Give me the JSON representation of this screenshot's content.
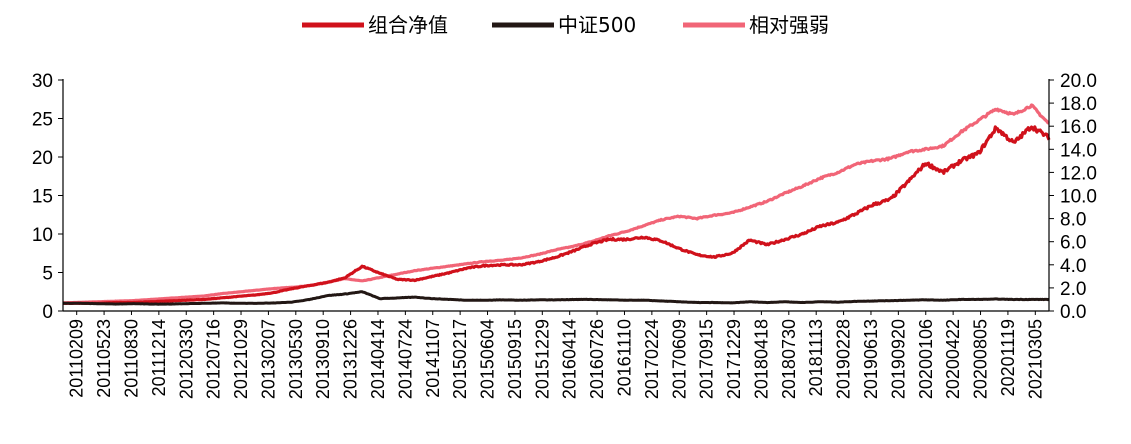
{
  "chart_data": {
    "type": "line",
    "legend_position": "top-center",
    "grid": false,
    "series": [
      {
        "name": "组合净值",
        "color": "#d0111b",
        "axis": "left",
        "values": [
          1.0,
          1.0,
          1.0,
          1.1,
          1.1,
          1.2,
          1.3,
          1.4,
          1.5,
          1.7,
          1.9,
          2.1,
          2.4,
          2.9,
          3.3,
          3.7,
          4.3,
          5.8,
          4.9,
          4.1,
          4.0,
          4.5,
          5.0,
          5.6,
          5.9,
          6.0,
          6.0,
          6.4,
          7.0,
          7.8,
          8.7,
          9.3,
          9.3,
          9.6,
          9.1,
          8.1,
          7.3,
          7.0,
          7.5,
          9.2,
          8.6,
          9.3,
          10.0,
          11.0,
          11.5,
          12.6,
          13.8,
          14.5,
          16.8,
          19.2,
          18.0,
          19.5,
          20.5,
          23.8,
          21.8,
          24.0,
          22.5
        ]
      },
      {
        "name": "中证500",
        "color": "#221714",
        "axis": "left",
        "values": [
          1.0,
          1.0,
          0.95,
          0.9,
          0.95,
          0.9,
          0.9,
          0.95,
          1.0,
          1.05,
          1.0,
          1.0,
          1.05,
          1.15,
          1.5,
          2.0,
          2.2,
          2.5,
          1.6,
          1.7,
          1.8,
          1.6,
          1.5,
          1.4,
          1.4,
          1.45,
          1.4,
          1.45,
          1.45,
          1.5,
          1.5,
          1.45,
          1.4,
          1.4,
          1.3,
          1.2,
          1.1,
          1.1,
          1.05,
          1.2,
          1.1,
          1.2,
          1.1,
          1.2,
          1.15,
          1.25,
          1.3,
          1.35,
          1.4,
          1.45,
          1.4,
          1.5,
          1.5,
          1.55,
          1.5,
          1.5,
          1.5
        ]
      },
      {
        "name": "相对强弱",
        "color": "#f16577",
        "axis": "right",
        "values": [
          0.7,
          0.75,
          0.8,
          0.85,
          0.9,
          1.0,
          1.1,
          1.2,
          1.3,
          1.5,
          1.65,
          1.8,
          1.95,
          2.05,
          2.2,
          2.5,
          2.8,
          2.6,
          2.9,
          3.2,
          3.5,
          3.7,
          3.9,
          4.1,
          4.3,
          4.4,
          4.6,
          4.9,
          5.3,
          5.6,
          6.0,
          6.5,
          6.9,
          7.4,
          7.9,
          8.2,
          8.0,
          8.3,
          8.5,
          9.0,
          9.5,
          10.2,
          10.8,
          11.5,
          12.0,
          12.7,
          13.0,
          13.2,
          13.8,
          14.0,
          14.3,
          15.5,
          16.5,
          17.5,
          17.0,
          17.8,
          16.2
        ]
      }
    ],
    "y_left": {
      "range": [
        0,
        30
      ],
      "ticks": [
        "0",
        "5",
        "10",
        "15",
        "20",
        "25",
        "30"
      ]
    },
    "y_right": {
      "range": [
        0,
        20
      ],
      "ticks": [
        "0.0",
        "2.0",
        "4.0",
        "6.0",
        "8.0",
        "10.0",
        "12.0",
        "14.0",
        "16.0",
        "18.0",
        "20.0"
      ]
    },
    "x_ticks": [
      "20110209",
      "20110523",
      "20110830",
      "20111214",
      "20120330",
      "20120716",
      "20121029",
      "20130207",
      "20130530",
      "20130910",
      "20131226",
      "20140414",
      "20140724",
      "20141107",
      "20150217",
      "20150604",
      "20150915",
      "20151229",
      "20160414",
      "20160726",
      "20161110",
      "20170224",
      "20170609",
      "20170915",
      "20171229",
      "20180418",
      "20180730",
      "20181113",
      "20190228",
      "20190613",
      "20190920",
      "20200106",
      "20200422",
      "20200805",
      "20201119",
      "20210305"
    ]
  }
}
